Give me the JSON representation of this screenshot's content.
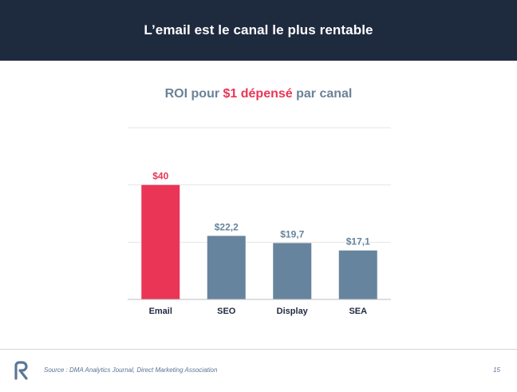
{
  "header": {
    "title": "L’email est le canal le plus rentable"
  },
  "chart_title": {
    "prefix": "ROI pour ",
    "highlight": "$1 dépensé",
    "suffix": " par canal"
  },
  "chart_data": {
    "type": "bar",
    "categories": [
      "Email",
      "SEO",
      "Display",
      "SEA"
    ],
    "values": [
      40,
      22.2,
      19.7,
      17.1
    ],
    "data_labels": [
      "$40",
      "$22,2",
      "$19,7",
      "$17,1"
    ],
    "ylim": [
      0,
      60
    ],
    "grid": true,
    "highlight_index": 0,
    "colors": {
      "highlight": "#ea3556",
      "default": "#66849d"
    },
    "title": "ROI pour $1 dépensé par canal"
  },
  "footer": {
    "source": "Source : DMA Analytics Journal, Direct Marketing Association",
    "page": "15"
  },
  "logo": {
    "icon": "r-logo-icon",
    "color": "#5a7894"
  }
}
